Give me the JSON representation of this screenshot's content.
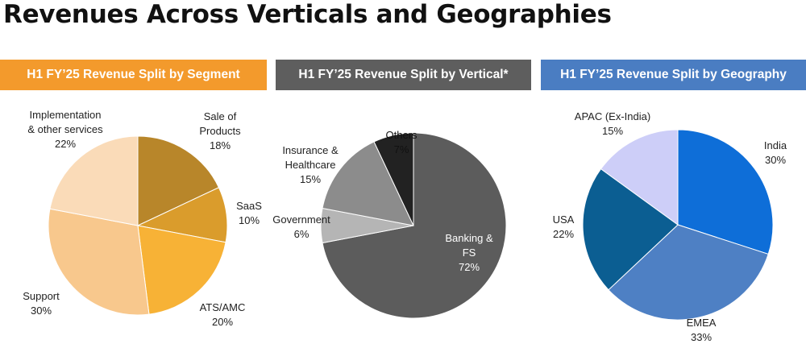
{
  "page": {
    "title": "Revenues Across Verticals and Geographies"
  },
  "chart_data": [
    {
      "type": "pie",
      "title": "H1 FY’25 Revenue Split by Segment",
      "header_color": "#F39A2C",
      "slices": [
        {
          "label_lines": [
            "Sale of",
            "Products"
          ],
          "value_label": "18%",
          "value": 18,
          "color": "#B8862A"
        },
        {
          "label_lines": [
            "SaaS"
          ],
          "value_label": "10%",
          "value": 10,
          "color": "#DA9C2C"
        },
        {
          "label_lines": [
            "ATS/AMC"
          ],
          "value_label": "20%",
          "value": 20,
          "color": "#F7B236"
        },
        {
          "label_lines": [
            "Support"
          ],
          "value_label": "30%",
          "value": 30,
          "color": "#F8C88D"
        },
        {
          "label_lines": [
            "Implementation",
            "& other services"
          ],
          "value_label": "22%",
          "value": 22,
          "color": "#FADBB8"
        }
      ]
    },
    {
      "type": "pie",
      "title": "H1 FY’25 Revenue Split by Vertical*",
      "header_color": "#5E5E5E",
      "slices": [
        {
          "label_lines": [
            "Banking &",
            "FS"
          ],
          "value_label": "72%",
          "value": 72,
          "color": "#5C5C5C"
        },
        {
          "label_lines": [
            "Government"
          ],
          "value_label": "6%",
          "value": 6,
          "color": "#B5B5B5"
        },
        {
          "label_lines": [
            "Insurance &",
            "Healthcare"
          ],
          "value_label": "15%",
          "value": 15,
          "color": "#8C8C8C"
        },
        {
          "label_lines": [
            "Others"
          ],
          "value_label": "7%",
          "value": 7,
          "color": "#222222"
        }
      ]
    },
    {
      "type": "pie",
      "title": "H1 FY’25 Revenue Split by Geography",
      "header_color": "#4A7DC2",
      "slices": [
        {
          "label_lines": [
            "India"
          ],
          "value_label": "30%",
          "value": 30,
          "color": "#0E6ED8"
        },
        {
          "label_lines": [
            "EMEA"
          ],
          "value_label": "33%",
          "value": 33,
          "color": "#4E80C4"
        },
        {
          "label_lines": [
            "USA"
          ],
          "value_label": "22%",
          "value": 22,
          "color": "#0B5E92"
        },
        {
          "label_lines": [
            "APAC (Ex-India)"
          ],
          "value_label": "15%",
          "value": 15,
          "color": "#CDCEF8"
        }
      ]
    }
  ]
}
